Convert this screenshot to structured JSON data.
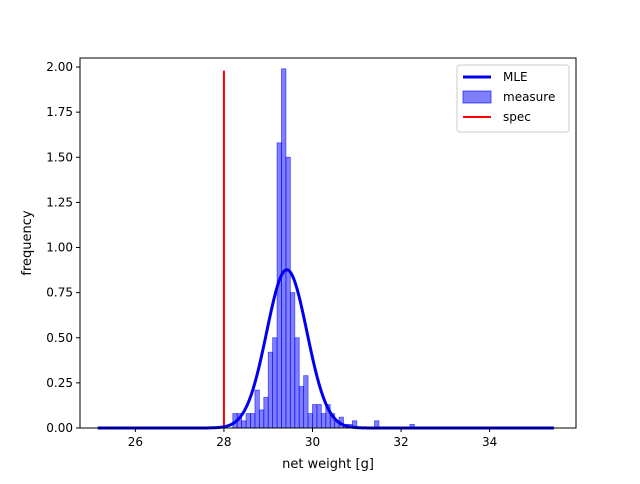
{
  "chart_data": {
    "type": "histogram",
    "xlabel": "net weight [g]",
    "ylabel": "frequency",
    "xlim": [
      24.75,
      35.95
    ],
    "ylim": [
      0,
      2.05
    ],
    "xticks": [
      26,
      28,
      30,
      32,
      34
    ],
    "yticks": [
      0.0,
      0.25,
      0.5,
      0.75,
      1.0,
      1.25,
      1.5,
      1.75,
      2.0
    ],
    "xtick_labels": [
      "26",
      "28",
      "30",
      "32",
      "34"
    ],
    "ytick_labels": [
      "0.00",
      "0.25",
      "0.50",
      "0.75",
      "1.00",
      "1.25",
      "1.50",
      "1.75",
      "2.00"
    ],
    "legend": {
      "position": "upper-right",
      "entries": [
        {
          "label": "MLE",
          "kind": "line",
          "color": "#0000ee"
        },
        {
          "label": "measure",
          "kind": "patch",
          "color": "#0000ff"
        },
        {
          "label": "spec",
          "kind": "line",
          "color": "#ff0000"
        }
      ]
    },
    "series": [
      {
        "name": "measure",
        "kind": "histogram",
        "color": "#0000ff",
        "bin_width": 0.1,
        "bins": [
          {
            "x0": 28.2,
            "value": 0.08
          },
          {
            "x0": 28.3,
            "value": 0.08
          },
          {
            "x0": 28.4,
            "value": 0.04
          },
          {
            "x0": 28.5,
            "value": 0.08
          },
          {
            "x0": 28.6,
            "value": 0.08
          },
          {
            "x0": 28.7,
            "value": 0.21
          },
          {
            "x0": 28.8,
            "value": 0.1
          },
          {
            "x0": 28.9,
            "value": 0.17
          },
          {
            "x0": 29.0,
            "value": 0.42
          },
          {
            "x0": 29.1,
            "value": 0.5
          },
          {
            "x0": 29.2,
            "value": 1.58
          },
          {
            "x0": 29.3,
            "value": 1.99
          },
          {
            "x0": 29.4,
            "value": 1.5
          },
          {
            "x0": 29.5,
            "value": 0.75
          },
          {
            "x0": 29.6,
            "value": 0.5
          },
          {
            "x0": 29.7,
            "value": 0.23
          },
          {
            "x0": 29.8,
            "value": 0.29
          },
          {
            "x0": 29.9,
            "value": 0.08
          },
          {
            "x0": 30.0,
            "value": 0.13
          },
          {
            "x0": 30.1,
            "value": 0.13
          },
          {
            "x0": 30.2,
            "value": 0.08
          },
          {
            "x0": 30.3,
            "value": 0.13
          },
          {
            "x0": 30.4,
            "value": 0.08
          },
          {
            "x0": 30.5,
            "value": 0.04
          },
          {
            "x0": 30.6,
            "value": 0.06
          },
          {
            "x0": 30.7,
            "value": 0.02
          },
          {
            "x0": 30.8,
            "value": 0.02
          },
          {
            "x0": 30.9,
            "value": 0.04
          },
          {
            "x0": 31.4,
            "value": 0.04
          },
          {
            "x0": 32.2,
            "value": 0.02
          }
        ]
      },
      {
        "name": "MLE",
        "kind": "line",
        "color": "#0000ee",
        "normal_mean": 29.42,
        "normal_std": 0.455,
        "x_range": [
          25.15,
          35.45
        ]
      },
      {
        "name": "spec",
        "kind": "vline",
        "color": "#ff0000",
        "x": 28.0,
        "y_range": [
          0,
          1.98
        ]
      }
    ]
  }
}
